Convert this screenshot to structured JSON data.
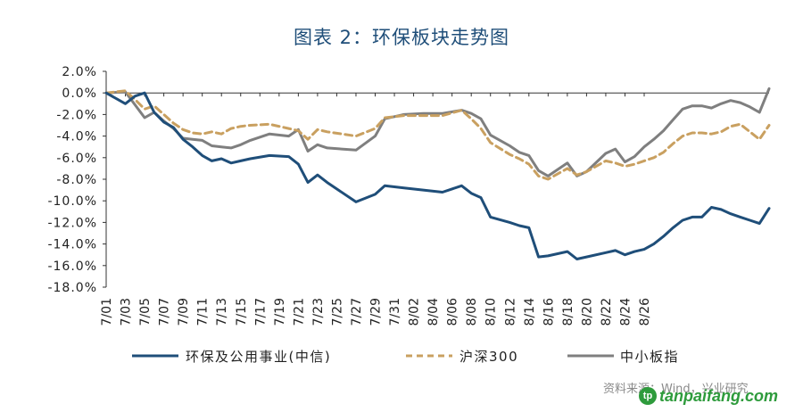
{
  "title": "图表 2：环保板块走势图",
  "source": "资料来源：Wind，兴业研究",
  "watermark": "tanpaifang.com",
  "chart_data": {
    "type": "line",
    "title": "图表 2：环保板块走势图",
    "xlabel": "",
    "ylabel": "",
    "ylim": [
      -18,
      2
    ],
    "yticks": [
      2,
      0,
      -2,
      -4,
      -6,
      -8,
      -10,
      -12,
      -14,
      -16,
      -18
    ],
    "ytick_labels": [
      "2.0%",
      "0.0%",
      "-2.0%",
      "-4.0%",
      "-6.0%",
      "-8.0%",
      "-10.0%",
      "-12.0%",
      "-14.0%",
      "-16.0%",
      "-18.0%"
    ],
    "x_tick_labels": [
      "7/01",
      "7/03",
      "7/05",
      "7/07",
      "7/09",
      "7/11",
      "7/13",
      "7/15",
      "7/17",
      "7/19",
      "7/21",
      "7/23",
      "7/25",
      "7/27",
      "7/29",
      "7/31",
      "8/02",
      "8/04",
      "8/06",
      "8/08",
      "8/10",
      "8/12",
      "8/14",
      "8/16",
      "8/18",
      "8/20",
      "8/22",
      "8/24",
      "8/26"
    ],
    "x_start": "7/01",
    "x_end": "8/28",
    "series": [
      {
        "name": "环保及公用事业(中信)",
        "color": "#1f4e79",
        "dash": "solid",
        "points": [
          [
            0,
            0
          ],
          [
            2,
            -1.0
          ],
          [
            3,
            -0.3
          ],
          [
            4,
            0.0
          ],
          [
            5,
            -1.8
          ],
          [
            6,
            -2.7
          ],
          [
            7,
            -3.2
          ],
          [
            8,
            -4.3
          ],
          [
            9,
            -5.0
          ],
          [
            10,
            -5.8
          ],
          [
            11,
            -6.3
          ],
          [
            12,
            -6.1
          ],
          [
            13,
            -6.5
          ],
          [
            14,
            -6.3
          ],
          [
            15,
            -6.1
          ],
          [
            17,
            -5.8
          ],
          [
            19,
            -5.9
          ],
          [
            20,
            -6.6
          ],
          [
            21,
            -8.3
          ],
          [
            22,
            -7.6
          ],
          [
            23,
            -8.3
          ],
          [
            26,
            -10.1
          ],
          [
            28,
            -9.4
          ],
          [
            29,
            -8.6
          ],
          [
            31,
            -8.8
          ],
          [
            33,
            -9.0
          ],
          [
            35,
            -9.2
          ],
          [
            37,
            -8.6
          ],
          [
            38,
            -9.3
          ],
          [
            39,
            -9.7
          ],
          [
            40,
            -11.5
          ],
          [
            42,
            -12.0
          ],
          [
            43,
            -12.3
          ],
          [
            44,
            -12.5
          ],
          [
            45,
            -15.2
          ],
          [
            46,
            -15.1
          ],
          [
            48,
            -14.7
          ],
          [
            49,
            -15.4
          ],
          [
            50,
            -15.2
          ],
          [
            52,
            -14.8
          ],
          [
            53,
            -14.6
          ],
          [
            54,
            -15.0
          ],
          [
            55,
            -14.7
          ],
          [
            56,
            -14.5
          ],
          [
            57,
            -14.0
          ],
          [
            58,
            -13.3
          ],
          [
            59,
            -12.5
          ],
          [
            60,
            -11.8
          ],
          [
            61,
            -11.5
          ],
          [
            62,
            -11.5
          ],
          [
            63,
            -10.6
          ],
          [
            64,
            -10.8
          ],
          [
            65,
            -11.2
          ],
          [
            66,
            -11.5
          ],
          [
            67,
            -11.8
          ],
          [
            68,
            -12.1
          ],
          [
            69,
            -10.7
          ]
        ]
      },
      {
        "name": "沪深300",
        "color": "#c9a060",
        "dash": "dashed",
        "points": [
          [
            0,
            0
          ],
          [
            2,
            0.2
          ],
          [
            3,
            -0.6
          ],
          [
            4,
            -1.5
          ],
          [
            5,
            -1.2
          ],
          [
            6,
            -2.0
          ],
          [
            7,
            -2.8
          ],
          [
            8,
            -3.4
          ],
          [
            9,
            -3.7
          ],
          [
            10,
            -3.8
          ],
          [
            11,
            -3.6
          ],
          [
            12,
            -3.8
          ],
          [
            13,
            -3.3
          ],
          [
            14,
            -3.1
          ],
          [
            15,
            -3.0
          ],
          [
            17,
            -2.9
          ],
          [
            19,
            -3.3
          ],
          [
            20,
            -3.5
          ],
          [
            21,
            -4.3
          ],
          [
            22,
            -3.4
          ],
          [
            23,
            -3.6
          ],
          [
            26,
            -4.0
          ],
          [
            28,
            -3.3
          ],
          [
            29,
            -2.3
          ],
          [
            31,
            -2.1
          ],
          [
            33,
            -2.1
          ],
          [
            35,
            -2.1
          ],
          [
            37,
            -1.6
          ],
          [
            38,
            -2.4
          ],
          [
            39,
            -3.3
          ],
          [
            40,
            -4.6
          ],
          [
            42,
            -5.7
          ],
          [
            43,
            -6.1
          ],
          [
            44,
            -6.6
          ],
          [
            45,
            -7.7
          ],
          [
            46,
            -8.0
          ],
          [
            48,
            -7.0
          ],
          [
            49,
            -7.6
          ],
          [
            50,
            -7.3
          ],
          [
            52,
            -6.3
          ],
          [
            53,
            -6.5
          ],
          [
            54,
            -6.8
          ],
          [
            55,
            -6.6
          ],
          [
            56,
            -6.3
          ],
          [
            57,
            -6.0
          ],
          [
            58,
            -5.5
          ],
          [
            59,
            -4.7
          ],
          [
            60,
            -4.0
          ],
          [
            61,
            -3.7
          ],
          [
            62,
            -3.7
          ],
          [
            63,
            -3.8
          ],
          [
            64,
            -3.6
          ],
          [
            65,
            -3.1
          ],
          [
            66,
            -2.9
          ],
          [
            67,
            -3.6
          ],
          [
            68,
            -4.3
          ],
          [
            69,
            -3.0
          ]
        ]
      },
      {
        "name": "中小板指",
        "color": "#7f7f7f",
        "dash": "solid",
        "points": [
          [
            0,
            0
          ],
          [
            2,
            0.1
          ],
          [
            3,
            -1.1
          ],
          [
            4,
            -2.3
          ],
          [
            5,
            -1.8
          ],
          [
            6,
            -2.6
          ],
          [
            7,
            -3.3
          ],
          [
            8,
            -4.2
          ],
          [
            9,
            -4.3
          ],
          [
            10,
            -4.4
          ],
          [
            11,
            -4.9
          ],
          [
            12,
            -5.0
          ],
          [
            13,
            -5.1
          ],
          [
            14,
            -4.8
          ],
          [
            15,
            -4.4
          ],
          [
            17,
            -3.8
          ],
          [
            19,
            -4.0
          ],
          [
            20,
            -3.4
          ],
          [
            21,
            -5.4
          ],
          [
            22,
            -4.8
          ],
          [
            23,
            -5.1
          ],
          [
            26,
            -5.3
          ],
          [
            28,
            -4.0
          ],
          [
            29,
            -2.4
          ],
          [
            31,
            -2.0
          ],
          [
            33,
            -1.9
          ],
          [
            35,
            -1.9
          ],
          [
            37,
            -1.6
          ],
          [
            38,
            -1.9
          ],
          [
            39,
            -2.4
          ],
          [
            40,
            -3.9
          ],
          [
            42,
            -4.9
          ],
          [
            43,
            -5.5
          ],
          [
            44,
            -5.8
          ],
          [
            45,
            -7.2
          ],
          [
            46,
            -7.7
          ],
          [
            48,
            -6.5
          ],
          [
            49,
            -7.7
          ],
          [
            50,
            -7.3
          ],
          [
            52,
            -5.6
          ],
          [
            53,
            -5.2
          ],
          [
            54,
            -6.4
          ],
          [
            55,
            -5.9
          ],
          [
            56,
            -5.0
          ],
          [
            57,
            -4.3
          ],
          [
            58,
            -3.5
          ],
          [
            59,
            -2.5
          ],
          [
            60,
            -1.5
          ],
          [
            61,
            -1.2
          ],
          [
            62,
            -1.2
          ],
          [
            63,
            -1.4
          ],
          [
            64,
            -1.0
          ],
          [
            65,
            -0.7
          ],
          [
            66,
            -0.9
          ],
          [
            67,
            -1.3
          ],
          [
            68,
            -1.8
          ],
          [
            69,
            0.4
          ]
        ]
      }
    ],
    "legend": {
      "placement": "bottom",
      "entries": [
        "环保及公用事业(中信)",
        "沪深300",
        "中小板指"
      ]
    },
    "grid": false
  }
}
